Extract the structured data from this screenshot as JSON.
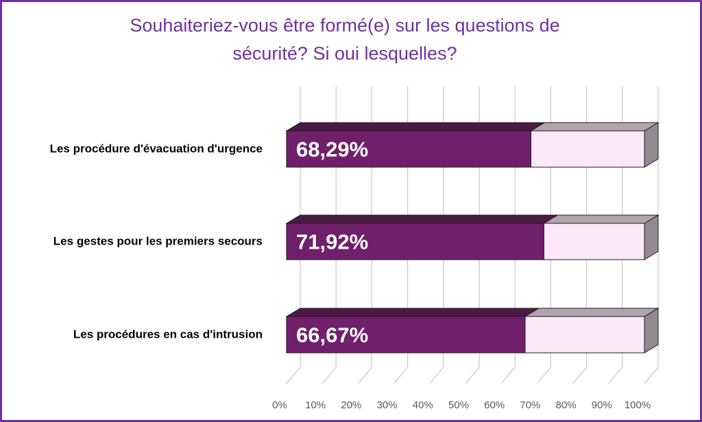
{
  "chart_data": {
    "type": "bar",
    "orientation": "horizontal",
    "stacked_to_100": true,
    "three_d": true,
    "title_lines": [
      "Souhaiteriez-vous être formé(e) sur les questions de",
      "sécurité?  Si oui lesquelles?"
    ],
    "categories": [
      "Les procédure d'évacuation d'urgence",
      "Les gestes pour les premiers secours",
      "Les procédures en cas d'intrusion"
    ],
    "series": [
      {
        "values": [
          68.29,
          71.92,
          66.67
        ],
        "color": "#70206a"
      },
      {
        "values": [
          31.71,
          28.08,
          33.33
        ],
        "color": "#fce8f9"
      }
    ],
    "data_labels": [
      "68,29%",
      "71,92%",
      "66,67%"
    ],
    "x_ticks": [
      "0%",
      "10%",
      "20%",
      "30%",
      "40%",
      "50%",
      "60%",
      "70%",
      "80%",
      "90%",
      "100%"
    ],
    "xlim": [
      0,
      100
    ],
    "grid": true,
    "legend": "none"
  },
  "colors": {
    "frame": "#7030a0",
    "title": "#7030a0",
    "bar_primary": "#70206a",
    "bar_primary_top": "#4a1a44",
    "bar_secondary": "#fce8f9",
    "bar_secondary_top": "#b0a4ad",
    "bar_side": "#938a91",
    "gridline": "#c8c8c8",
    "tick_text": "#595959",
    "category_text": "#000000",
    "data_label_text": "#ffffff"
  }
}
